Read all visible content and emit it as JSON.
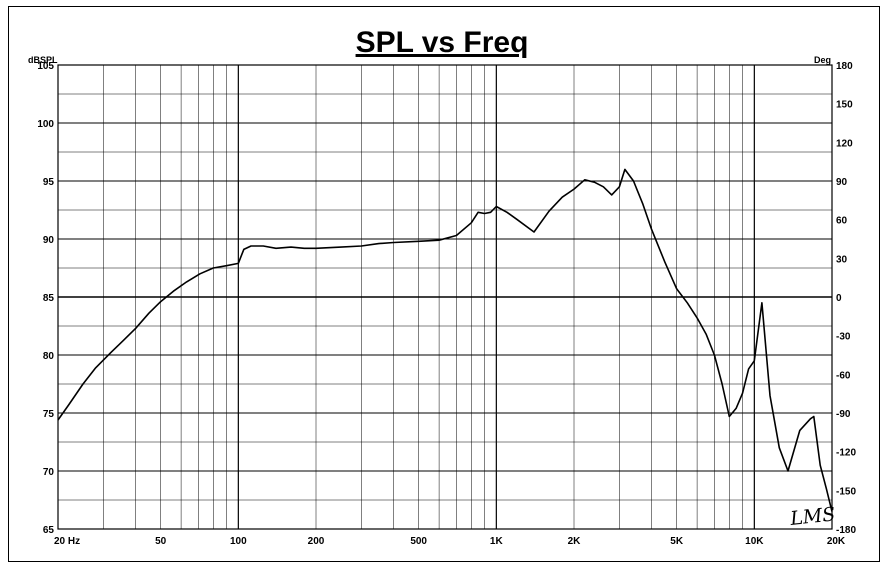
{
  "chart_data": {
    "type": "line",
    "title": "SPL vs Freq",
    "ylabel_left": "dBSPL",
    "ylabel_right": "Deg",
    "x_scale": "log",
    "xlim": [
      20,
      20000
    ],
    "ylim": [
      65,
      105
    ],
    "ylim_right": [
      -180,
      180
    ],
    "x_tick_labels": [
      {
        "value": 20,
        "label": "20  Hz"
      },
      {
        "value": 50,
        "label": "50"
      },
      {
        "value": 100,
        "label": "100"
      },
      {
        "value": 200,
        "label": "200"
      },
      {
        "value": 500,
        "label": "500"
      },
      {
        "value": 1000,
        "label": "1K"
      },
      {
        "value": 2000,
        "label": "2K"
      },
      {
        "value": 5000,
        "label": "5K"
      },
      {
        "value": 10000,
        "label": "10K"
      },
      {
        "value": 20000,
        "label": "20K"
      }
    ],
    "y_ticks_left": [
      105,
      100,
      95,
      90,
      85,
      80,
      75,
      70,
      65
    ],
    "y_ticks_right": [
      180,
      150,
      120,
      90,
      60,
      30,
      0,
      -30,
      -60,
      -90,
      -120,
      -150,
      -180
    ],
    "grid": true,
    "watermark": "LMS",
    "series": [
      {
        "color": "#000000",
        "x": [
          20,
          22,
          25,
          28,
          32,
          36,
          40,
          45,
          50,
          56,
          63,
          71,
          80,
          90,
          100,
          105,
          112,
          125,
          140,
          160,
          180,
          200,
          250,
          300,
          350,
          400,
          500,
          600,
          700,
          800,
          850,
          900,
          950,
          1000,
          1100,
          1200,
          1400,
          1600,
          1800,
          2000,
          2200,
          2400,
          2600,
          2800,
          3000,
          3150,
          3400,
          3700,
          4000,
          4500,
          5000,
          5500,
          6000,
          6500,
          7000,
          7500,
          8000,
          8500,
          9000,
          9500,
          10000,
          10700,
          11500,
          12500,
          13500,
          15000,
          16500,
          17000,
          18000,
          19000,
          20000
        ],
        "y": [
          74.4,
          75.7,
          77.5,
          78.9,
          80.2,
          81.3,
          82.3,
          83.6,
          84.6,
          85.5,
          86.3,
          87,
          87.5,
          87.7,
          87.9,
          89.1,
          89.4,
          89.4,
          89.2,
          89.3,
          89.2,
          89.2,
          89.3,
          89.4,
          89.6,
          89.7,
          89.8,
          89.9,
          90.3,
          91.4,
          92.3,
          92.2,
          92.3,
          92.8,
          92.3,
          91.7,
          90.6,
          92.4,
          93.6,
          94.3,
          95.1,
          94.9,
          94.5,
          93.8,
          94.5,
          96,
          95,
          93,
          90.8,
          88,
          85.7,
          84.5,
          83.2,
          81.8,
          80,
          77.5,
          74.7,
          75.4,
          76.7,
          78.8,
          79.5,
          84.5,
          76.5,
          72,
          70,
          73.5,
          74.5,
          74.7,
          70.5,
          68.5,
          66.5
        ]
      }
    ]
  }
}
